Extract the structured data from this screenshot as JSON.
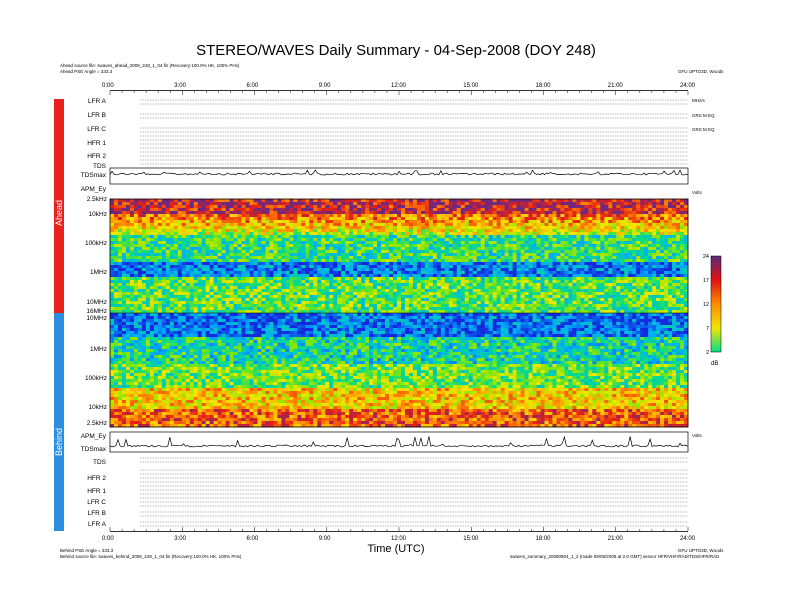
{
  "header": {
    "title": "STEREO/WAVES Daily Summary - 04-Sep-2008 (DOY 248)",
    "ahead_source": "Ahead source file: swaves_ahead_2008_248_1_04.fin (Recovery:100.0% HK, 100% PHs)",
    "ahead_angle": "Ahead PSE Angle = 333.3",
    "credit_right": "GFU UPTO3D, Woods",
    "behind_angle": "Behind PSE Angle = 333.3",
    "behind_source": "Behind source file: swaves_behind_2008_248_1_04.fin (Recovery:100.0% HK, 100% PHs)",
    "footer_right": "swaves_summary_20080904_1_2 (made 09/05/2008 at 2.0 GMT) sensor HFR/VHF/RAD/TDS/HFR/RAD"
  },
  "side": {
    "ahead": "Ahead",
    "behind": "Behind"
  },
  "time_axis": {
    "label": "Time (UTC)",
    "ticks": [
      "0:00",
      "3:00",
      "6:00",
      "9:00",
      "12:00",
      "15:00",
      "18:00",
      "21:00",
      "24:00"
    ]
  },
  "top_panels": [
    {
      "label": "LFR A"
    },
    {
      "label": "LFR B"
    },
    {
      "label": "LFR C"
    },
    {
      "label": "HFR 1"
    },
    {
      "label": "HFR 2"
    },
    {
      "label": "TDS"
    },
    {
      "label": "TDSmax"
    },
    {
      "label": "APM_Ey"
    }
  ],
  "bottom_panels": [
    {
      "label": "APM_Ey"
    },
    {
      "label": "TDSmax"
    },
    {
      "label": "TDS"
    },
    {
      "label": "HFR 2"
    },
    {
      "label": "HFR 1"
    },
    {
      "label": "LFR C"
    },
    {
      "label": "LFR B"
    },
    {
      "label": "LFR A"
    }
  ],
  "right_tiny": {
    "lfr_a": "MHz/s",
    "lfr_b": "GRS M EQ",
    "lfr_c": "GRS M EQ",
    "volts": "Volts",
    "volts_b": "Volts",
    "db": "dB"
  },
  "colorbar": {
    "ticks": [
      "24",
      "17",
      "12",
      "7",
      "2"
    ],
    "unit": "dB"
  },
  "chart_data": {
    "type": "heatmap",
    "title": "STEREO/WAVES Daily Summary - 04-Sep-2008 (DOY 248)",
    "xlabel": "Time (UTC)",
    "x_range_hours": [
      0,
      24
    ],
    "ahead_freq_ticks": [
      "2.5kHz",
      "10kHz",
      "100kHz",
      "1MHz",
      "10MHz",
      "16MHz"
    ],
    "behind_freq_ticks": [
      "10MHz",
      "1MHz",
      "100kHz",
      "10kHz",
      "2.5kHz"
    ],
    "zlabel": "dB",
    "z_range": [
      2,
      24
    ]
  }
}
